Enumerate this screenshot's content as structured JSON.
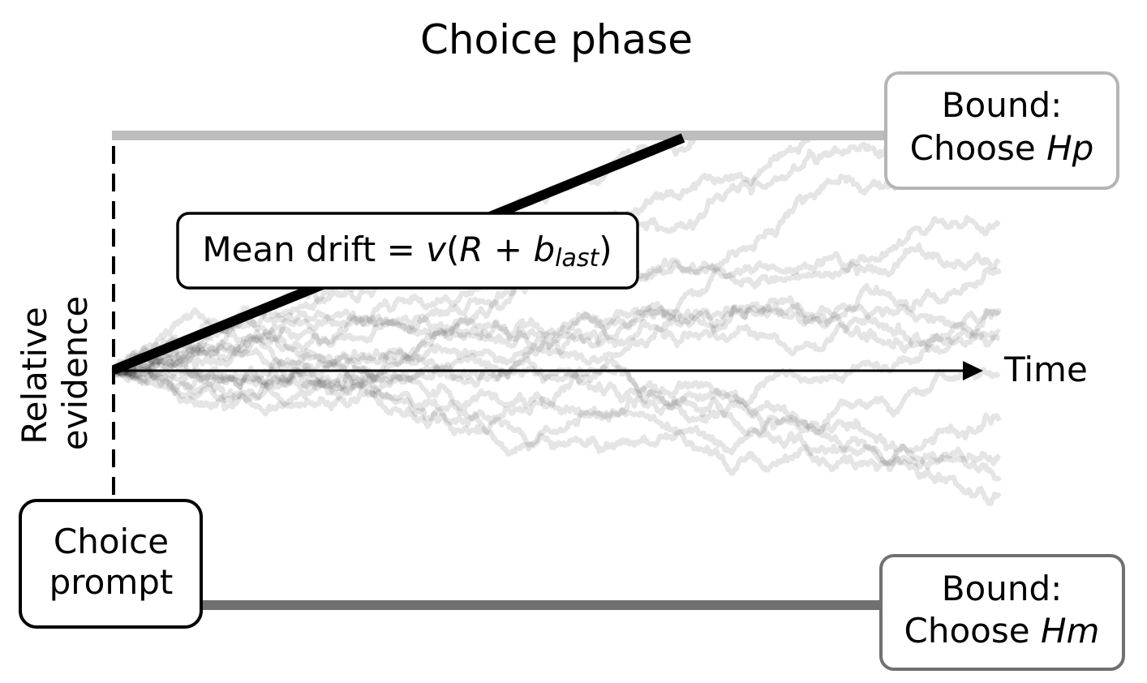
{
  "title": "Choice phase",
  "y_axis_label": [
    "Relative",
    "evidence"
  ],
  "x_axis_label": "Time",
  "drift_label": {
    "prefix": "Mean drift = ",
    "v": "v",
    "open_paren": "(",
    "R": "R",
    "plus": " + ",
    "b": "b",
    "subscript": "last",
    "close_paren": ")"
  },
  "upper_bound_label": {
    "line1": "Bound:",
    "line2_prefix": "Choose ",
    "line2_italic": "Hp"
  },
  "lower_bound_label": {
    "line1": "Bound:",
    "line2_prefix": "Choose ",
    "line2_italic": "Hm"
  },
  "prompt_label": [
    "Choice",
    "prompt"
  ],
  "colors": {
    "upper_bound": "#bdbdbd",
    "lower_bound": "#707070",
    "trajectories": "#000000",
    "drift_line": "#000000",
    "upper_box_border": "#b5b5b5",
    "lower_box_border": "#707070"
  }
}
